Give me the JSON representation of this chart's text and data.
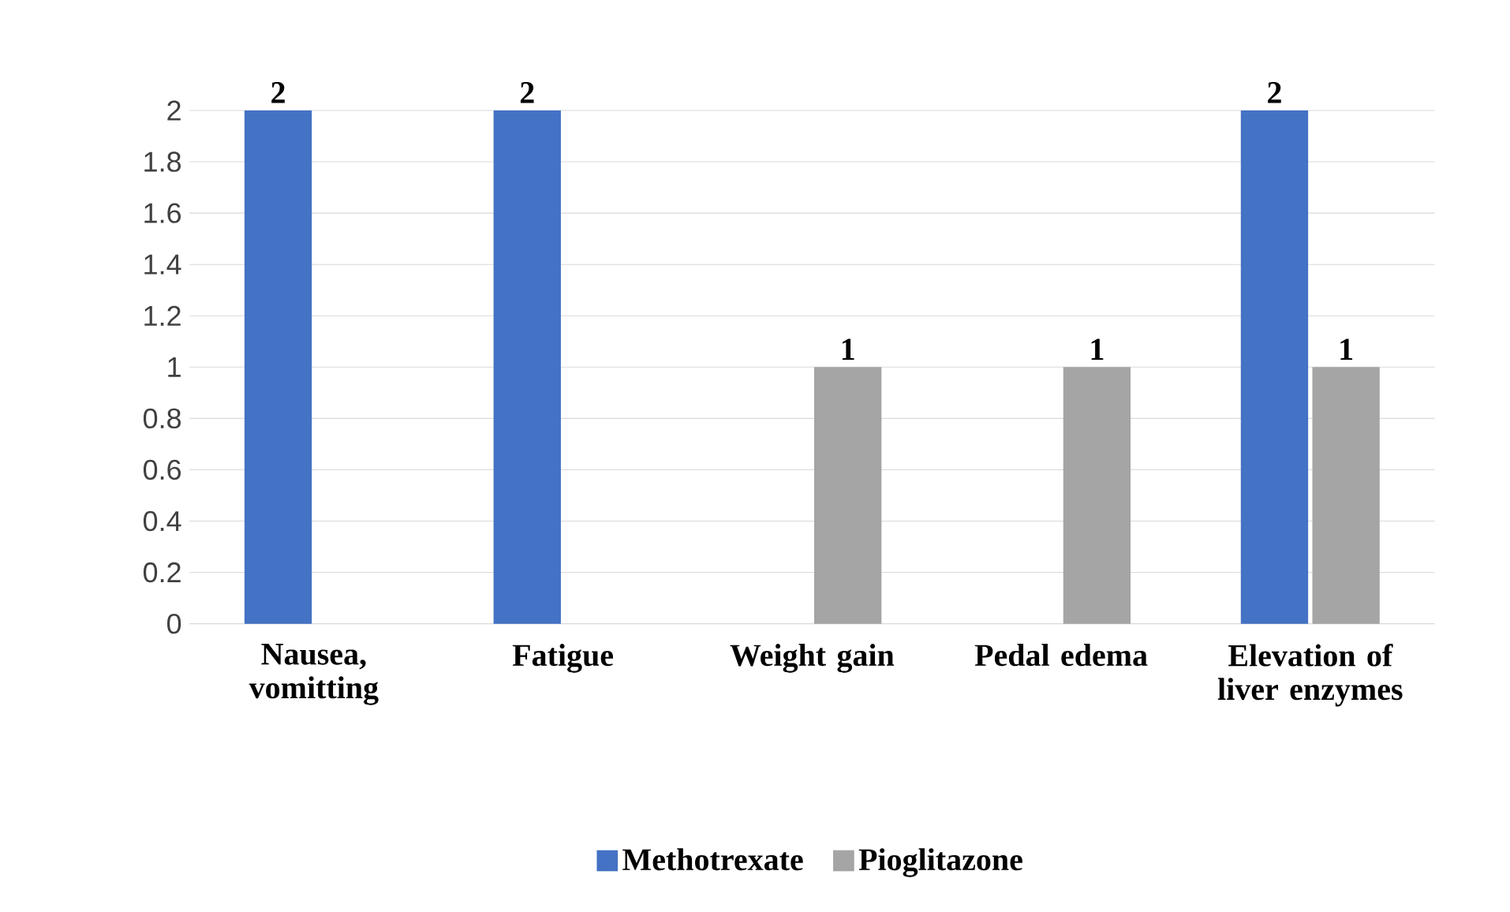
{
  "chart_data": {
    "type": "bar",
    "categories": [
      "Nausea, vomitting",
      "Fatigue",
      "Weight gain",
      "Pedal edema",
      "Elevation of liver enzymes"
    ],
    "series": [
      {
        "name": "Methotrexate",
        "color": "#4472c4",
        "values": [
          2,
          2,
          0,
          0,
          2
        ],
        "value_labels": [
          "2",
          "2",
          null,
          null,
          "2"
        ]
      },
      {
        "name": "Pioglitazone",
        "color": "#a5a5a5",
        "values": [
          0,
          0,
          1,
          1,
          1
        ],
        "value_labels": [
          null,
          null,
          "1",
          "1",
          "1"
        ]
      }
    ],
    "ylim": [
      0,
      2
    ],
    "yticks": [
      0,
      0.2,
      0.4,
      0.6,
      0.8,
      1,
      1.2,
      1.4,
      1.6,
      1.8,
      2
    ],
    "grid": "y",
    "legend": "bottom"
  }
}
